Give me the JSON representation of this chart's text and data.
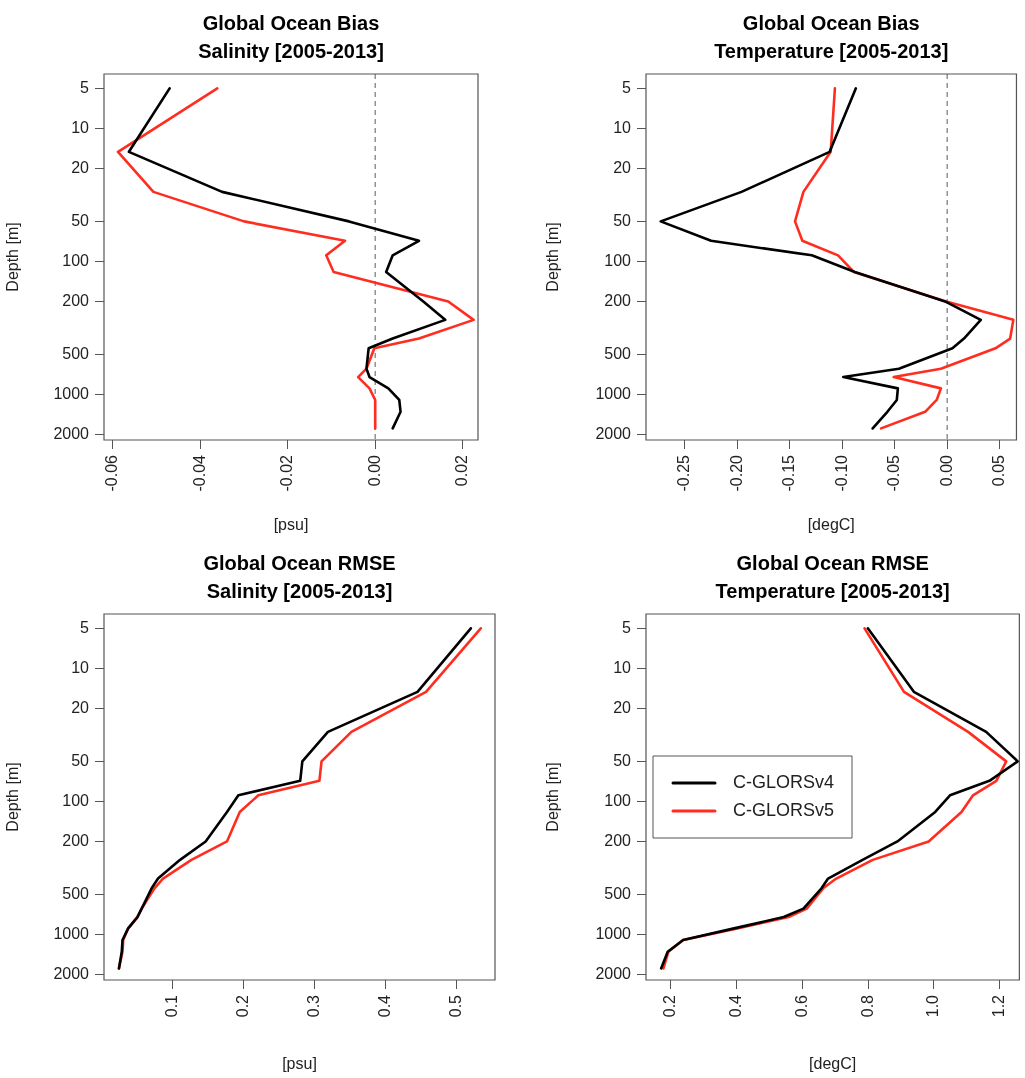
{
  "chart_data": [
    {
      "type": "line",
      "title": "Global Ocean Bias",
      "subtitle": "Salinity [2005-2013]",
      "xlabel": "[psu]",
      "ylabel": "Depth [m]",
      "log": "y",
      "grid": false,
      "legend": false,
      "marker": "none",
      "line_style": "solid",
      "xlim": [
        -0.062,
        0.0235
      ],
      "xticks": [
        {
          "value": -0.06,
          "label": "-0.06"
        },
        {
          "value": -0.04,
          "label": "-0.04"
        },
        {
          "value": -0.02,
          "label": "-0.02"
        },
        {
          "value": 0,
          "label": "0.00"
        },
        {
          "value": 0.02,
          "label": "0.02"
        }
      ],
      "ylim": [
        2200,
        3.9
      ],
      "yticks": [
        5,
        10,
        20,
        50,
        100,
        200,
        500,
        1000,
        2000
      ],
      "ref_lines": [
        {
          "axis": "x",
          "value": 0,
          "color": "#808080",
          "line_style": "dashed"
        }
      ],
      "series": [
        {
          "color": "#000000",
          "x": [
            -0.047,
            -0.0563,
            -0.035,
            -0.006,
            0.01,
            0.004,
            0.0025,
            0.011,
            0.016,
            0.004,
            -0.0015,
            -0.002,
            -0.0013,
            0.003,
            0.0055,
            0.0058,
            0.004
          ],
          "values": [
            5,
            15,
            30,
            50,
            70,
            90,
            120,
            200,
            275,
            380,
            450,
            640,
            740,
            900,
            1100,
            1350,
            1800
          ]
        },
        {
          "color": "#ff2d1f",
          "x": [
            -0.0361,
            -0.0588,
            -0.0507,
            -0.03,
            -0.0069,
            -0.0112,
            -0.0095,
            0.0167,
            0.0225,
            0.01,
            -0.0002,
            -0.002,
            -0.0039,
            -0.0013,
            0,
            0
          ],
          "values": [
            5,
            15,
            30,
            50,
            70,
            90,
            120,
            200,
            275,
            380,
            450,
            640,
            740,
            900,
            1100,
            1800
          ]
        }
      ]
    },
    {
      "type": "line",
      "title": "Global Ocean Bias",
      "subtitle": "Temperature [2005-2013]",
      "xlabel": "[degC]",
      "ylabel": "Depth [m]",
      "log": "y",
      "grid": false,
      "legend": false,
      "marker": "none",
      "line_style": "solid",
      "xlim": [
        -0.287,
        0.066
      ],
      "xticks": [
        {
          "value": -0.25,
          "label": "-0.25"
        },
        {
          "value": -0.2,
          "label": "-0.20"
        },
        {
          "value": -0.15,
          "label": "-0.15"
        },
        {
          "value": -0.1,
          "label": "-0.10"
        },
        {
          "value": -0.05,
          "label": "-0.05"
        },
        {
          "value": 0,
          "label": "0.00"
        },
        0.05
      ],
      "ylim": [
        2200,
        3.9
      ],
      "yticks": [
        5,
        10,
        20,
        50,
        100,
        200,
        500,
        1000,
        2000
      ],
      "ref_lines": [
        {
          "axis": "x",
          "value": 0,
          "color": "#808080",
          "line_style": "dashed"
        }
      ],
      "series": [
        {
          "color": "#000000",
          "x": [
            -0.087,
            -0.112,
            -0.196,
            -0.273,
            -0.225,
            -0.129,
            -0.088,
            -0.002,
            0.032,
            0.016,
            0.005,
            -0.046,
            -0.099,
            -0.047,
            -0.048,
            -0.057,
            -0.071
          ],
          "values": [
            5,
            15,
            30,
            50,
            70,
            90,
            120,
            200,
            275,
            380,
            450,
            640,
            740,
            900,
            1100,
            1350,
            1800
          ]
        },
        {
          "color": "#ff2d1f",
          "x": [
            -0.107,
            -0.111,
            -0.137,
            -0.145,
            -0.138,
            -0.104,
            -0.089,
            -0.001,
            0.063,
            0.06,
            0.046,
            -0.006,
            -0.051,
            -0.006,
            -0.01,
            -0.021,
            -0.063
          ],
          "values": [
            5,
            15,
            30,
            50,
            70,
            90,
            120,
            200,
            275,
            380,
            450,
            640,
            740,
            900,
            1100,
            1350,
            1800
          ]
        }
      ]
    },
    {
      "type": "line",
      "title": "Global Ocean RMSE",
      "subtitle": "Salinity [2005-2013]",
      "xlabel": "[psu]",
      "ylabel": "Depth [m]",
      "log": "y",
      "grid": false,
      "legend": false,
      "marker": "none",
      "line_style": "solid",
      "xlim": [
        0.004,
        0.554
      ],
      "xticks": [
        0.1,
        0.2,
        0.3,
        0.4,
        0.5
      ],
      "ylim": [
        2200,
        3.9
      ],
      "yticks": [
        5,
        10,
        20,
        50,
        100,
        200,
        500,
        1000,
        2000
      ],
      "series": [
        {
          "color": "#000000",
          "x": [
            0.52,
            0.445,
            0.319,
            0.283,
            0.28,
            0.193,
            0.177,
            0.147,
            0.111,
            0.08,
            0.071,
            0.057,
            0.051,
            0.038,
            0.03,
            0.029,
            0.025
          ],
          "values": [
            5,
            15,
            30,
            50,
            70,
            90,
            120,
            200,
            275,
            380,
            450,
            640,
            740,
            900,
            1100,
            1350,
            1800
          ]
        },
        {
          "color": "#ff2d1f",
          "x": [
            0.534,
            0.457,
            0.352,
            0.31,
            0.307,
            0.221,
            0.195,
            0.177,
            0.127,
            0.087,
            0.075,
            0.057,
            0.051,
            0.038,
            0.031,
            0.03,
            0.025
          ],
          "values": [
            5,
            15,
            30,
            50,
            70,
            90,
            120,
            200,
            275,
            380,
            450,
            640,
            740,
            900,
            1100,
            1350,
            1800
          ]
        }
      ]
    },
    {
      "type": "line",
      "title": "Global Ocean RMSE",
      "subtitle": "Temperature [2005-2013]",
      "xlabel": "[degC]",
      "ylabel": "Depth [m]",
      "log": "y",
      "grid": false,
      "legend": "left",
      "marker": "none",
      "line_style": "solid",
      "xlim": [
        0.124,
        1.26
      ],
      "xticks": [
        0.2,
        0.4,
        0.6,
        0.8,
        {
          "value": 1,
          "label": "1.0"
        },
        1.2
      ],
      "ylim": [
        2200,
        3.9
      ],
      "yticks": [
        5,
        10,
        20,
        50,
        100,
        200,
        500,
        1000,
        2000
      ],
      "series": [
        {
          "name": "C-GLORSv4",
          "color": "#000000",
          "x": [
            0.799,
            0.939,
            1.159,
            1.255,
            1.169,
            1.049,
            1.004,
            0.889,
            0.783,
            0.678,
            0.658,
            0.603,
            0.543,
            0.392,
            0.237,
            0.19,
            0.17
          ],
          "values": [
            5,
            15,
            30,
            50,
            70,
            90,
            120,
            200,
            275,
            380,
            450,
            640,
            740,
            900,
            1100,
            1350,
            1800
          ]
        },
        {
          "name": "C-GLORSv5",
          "color": "#ff2d1f",
          "x": [
            0.789,
            0.909,
            1.104,
            1.22,
            1.19,
            1.119,
            1.084,
            0.984,
            0.814,
            0.703,
            0.663,
            0.613,
            0.558,
            0.402,
            0.237,
            0.192,
            0.177
          ],
          "values": [
            5,
            15,
            30,
            50,
            70,
            90,
            120,
            200,
            275,
            380,
            450,
            640,
            740,
            900,
            1100,
            1350,
            1800
          ]
        }
      ]
    }
  ]
}
